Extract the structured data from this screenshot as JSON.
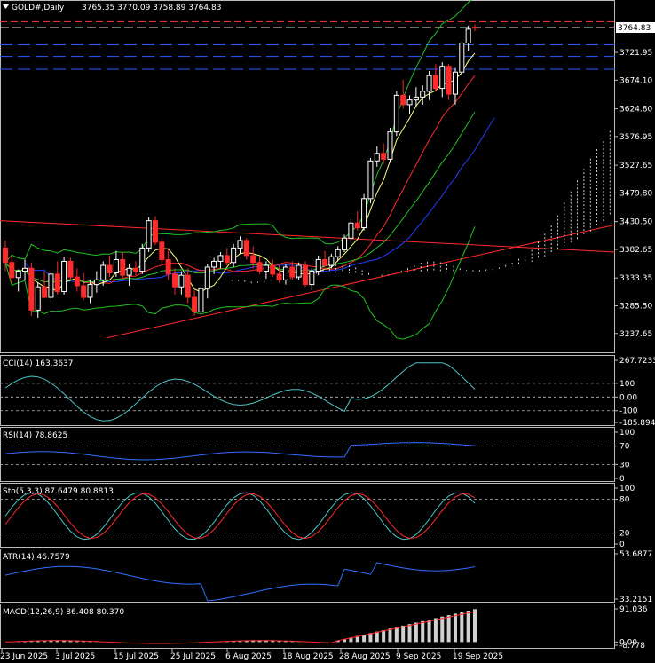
{
  "symbol_line": {
    "symbol": "GOLD#,Daily",
    "ohlc": "3765.35 3770.09 3758.89 3764.83"
  },
  "current_price": "3764.83",
  "colors": {
    "background": "#000000",
    "bull_candle": "#ffffff",
    "bear_candle": "#ff2a2a",
    "h_line_red": "#ff3b3b",
    "h_line_blue": "#2a5cff",
    "bollinger": "#22c022",
    "ma_fast": "#ffff80",
    "ma_mid": "#ff2a2a",
    "ma_slow": "#2040ff",
    "trend_red": "#ff2a2a",
    "ichimoku": "#ffffff",
    "cci": "#4fc3c3",
    "rsi": "#2f6fff",
    "stoch_main": "#4fc3c3",
    "stoch_signal": "#ff2a2a",
    "atr": "#2f6fff",
    "macd_hist": "#d0d0d0",
    "macd_signal": "#ff2a2a"
  },
  "chart_data": {
    "type": "candlestick",
    "price_axis": {
      "ticks": [
        "3764.83",
        "3721.95",
        "3674.10",
        "3624.80",
        "3576.95",
        "3527.65",
        "3479.80",
        "3430.50",
        "3382.65",
        "3333.35",
        "3285.50",
        "3237.65"
      ],
      "range": [
        3222,
        3800
      ]
    },
    "date_axis": [
      "23 Jun 2025",
      "3 Jul 2025",
      "15 Jul 2025",
      "25 Jul 2025",
      "6 Aug 2025",
      "18 Aug 2025",
      "28 Aug 2025",
      "9 Sep 2025",
      "19 Sep 2025"
    ],
    "candles": [
      {
        "o": 3385,
        "h": 3398,
        "l": 3345,
        "c": 3360
      },
      {
        "o": 3360,
        "h": 3372,
        "l": 3325,
        "c": 3334
      },
      {
        "o": 3334,
        "h": 3348,
        "l": 3310,
        "c": 3345
      },
      {
        "o": 3345,
        "h": 3365,
        "l": 3330,
        "c": 3350
      },
      {
        "o": 3350,
        "h": 3360,
        "l": 3268,
        "c": 3278
      },
      {
        "o": 3278,
        "h": 3325,
        "l": 3265,
        "c": 3318
      },
      {
        "o": 3318,
        "h": 3345,
        "l": 3298,
        "c": 3300
      },
      {
        "o": 3300,
        "h": 3345,
        "l": 3292,
        "c": 3340
      },
      {
        "o": 3340,
        "h": 3362,
        "l": 3305,
        "c": 3310
      },
      {
        "o": 3310,
        "h": 3370,
        "l": 3305,
        "c": 3362
      },
      {
        "o": 3362,
        "h": 3368,
        "l": 3330,
        "c": 3335
      },
      {
        "o": 3335,
        "h": 3350,
        "l": 3310,
        "c": 3320
      },
      {
        "o": 3320,
        "h": 3342,
        "l": 3295,
        "c": 3300
      },
      {
        "o": 3300,
        "h": 3330,
        "l": 3290,
        "c": 3322
      },
      {
        "o": 3322,
        "h": 3345,
        "l": 3308,
        "c": 3330
      },
      {
        "o": 3330,
        "h": 3362,
        "l": 3320,
        "c": 3355
      },
      {
        "o": 3355,
        "h": 3372,
        "l": 3335,
        "c": 3342
      },
      {
        "o": 3342,
        "h": 3380,
        "l": 3335,
        "c": 3365
      },
      {
        "o": 3365,
        "h": 3378,
        "l": 3332,
        "c": 3338
      },
      {
        "o": 3338,
        "h": 3358,
        "l": 3320,
        "c": 3350
      },
      {
        "o": 3350,
        "h": 3362,
        "l": 3338,
        "c": 3345
      },
      {
        "o": 3345,
        "h": 3392,
        "l": 3340,
        "c": 3385
      },
      {
        "o": 3385,
        "h": 3438,
        "l": 3378,
        "c": 3432
      },
      {
        "o": 3432,
        "h": 3440,
        "l": 3390,
        "c": 3395
      },
      {
        "o": 3395,
        "h": 3402,
        "l": 3355,
        "c": 3365
      },
      {
        "o": 3365,
        "h": 3385,
        "l": 3330,
        "c": 3340
      },
      {
        "o": 3340,
        "h": 3350,
        "l": 3305,
        "c": 3318
      },
      {
        "o": 3318,
        "h": 3345,
        "l": 3305,
        "c": 3338
      },
      {
        "o": 3338,
        "h": 3350,
        "l": 3290,
        "c": 3300
      },
      {
        "o": 3300,
        "h": 3312,
        "l": 3268,
        "c": 3275
      },
      {
        "o": 3275,
        "h": 3318,
        "l": 3270,
        "c": 3315
      },
      {
        "o": 3315,
        "h": 3358,
        "l": 3298,
        "c": 3352
      },
      {
        "o": 3352,
        "h": 3368,
        "l": 3340,
        "c": 3362
      },
      {
        "o": 3362,
        "h": 3378,
        "l": 3350,
        "c": 3372
      },
      {
        "o": 3372,
        "h": 3385,
        "l": 3355,
        "c": 3360
      },
      {
        "o": 3360,
        "h": 3392,
        "l": 3352,
        "c": 3385
      },
      {
        "o": 3385,
        "h": 3405,
        "l": 3375,
        "c": 3398
      },
      {
        "o": 3398,
        "h": 3402,
        "l": 3365,
        "c": 3372
      },
      {
        "o": 3372,
        "h": 3388,
        "l": 3350,
        "c": 3360
      },
      {
        "o": 3360,
        "h": 3370,
        "l": 3340,
        "c": 3345
      },
      {
        "o": 3345,
        "h": 3362,
        "l": 3332,
        "c": 3355
      },
      {
        "o": 3355,
        "h": 3365,
        "l": 3335,
        "c": 3340
      },
      {
        "o": 3340,
        "h": 3356,
        "l": 3325,
        "c": 3330
      },
      {
        "o": 3330,
        "h": 3358,
        "l": 3322,
        "c": 3352
      },
      {
        "o": 3352,
        "h": 3362,
        "l": 3330,
        "c": 3335
      },
      {
        "o": 3335,
        "h": 3360,
        "l": 3330,
        "c": 3355
      },
      {
        "o": 3355,
        "h": 3362,
        "l": 3318,
        "c": 3322
      },
      {
        "o": 3322,
        "h": 3350,
        "l": 3312,
        "c": 3345
      },
      {
        "o": 3345,
        "h": 3372,
        "l": 3338,
        "c": 3365
      },
      {
        "o": 3365,
        "h": 3380,
        "l": 3348,
        "c": 3355
      },
      {
        "o": 3355,
        "h": 3375,
        "l": 3350,
        "c": 3370
      },
      {
        "o": 3370,
        "h": 3388,
        "l": 3362,
        "c": 3382
      },
      {
        "o": 3382,
        "h": 3408,
        "l": 3378,
        "c": 3402
      },
      {
        "o": 3402,
        "h": 3435,
        "l": 3395,
        "c": 3428
      },
      {
        "o": 3428,
        "h": 3448,
        "l": 3415,
        "c": 3420
      },
      {
        "o": 3420,
        "h": 3478,
        "l": 3415,
        "c": 3470
      },
      {
        "o": 3470,
        "h": 3540,
        "l": 3462,
        "c": 3535
      },
      {
        "o": 3535,
        "h": 3560,
        "l": 3525,
        "c": 3548
      },
      {
        "o": 3548,
        "h": 3565,
        "l": 3530,
        "c": 3538
      },
      {
        "o": 3538,
        "h": 3592,
        "l": 3532,
        "c": 3585
      },
      {
        "o": 3585,
        "h": 3655,
        "l": 3578,
        "c": 3648
      },
      {
        "o": 3648,
        "h": 3675,
        "l": 3625,
        "c": 3632
      },
      {
        "o": 3632,
        "h": 3648,
        "l": 3615,
        "c": 3640
      },
      {
        "o": 3640,
        "h": 3662,
        "l": 3628,
        "c": 3645
      },
      {
        "o": 3645,
        "h": 3665,
        "l": 3632,
        "c": 3655
      },
      {
        "o": 3655,
        "h": 3690,
        "l": 3640,
        "c": 3682
      },
      {
        "o": 3682,
        "h": 3702,
        "l": 3655,
        "c": 3660
      },
      {
        "o": 3660,
        "h": 3705,
        "l": 3645,
        "c": 3698
      },
      {
        "o": 3698,
        "h": 3702,
        "l": 3640,
        "c": 3650
      },
      {
        "o": 3650,
        "h": 3695,
        "l": 3632,
        "c": 3688
      },
      {
        "o": 3688,
        "h": 3740,
        "l": 3682,
        "c": 3738
      },
      {
        "o": 3738,
        "h": 3768,
        "l": 3725,
        "c": 3762
      },
      {
        "o": 3765.35,
        "h": 3770.09,
        "l": 3758.89,
        "c": 3764.83
      }
    ],
    "indicators": {
      "cci": {
        "label": "CCI(14) 163.3637",
        "ticks": [
          "267.7233",
          "100",
          "0.00",
          "-100",
          "-185.8945"
        ],
        "range": [
          -185.8945,
          267.7233
        ],
        "levels": [
          100,
          0,
          -100
        ]
      },
      "rsi": {
        "label": "RSI(14) 78.8625",
        "ticks": [
          "100",
          "70",
          "30",
          "0"
        ],
        "range": [
          0,
          100
        ],
        "levels": [
          70,
          30
        ]
      },
      "stoch": {
        "label": "Sto(5,3,3) 87.6479 80.8813",
        "ticks": [
          "100",
          "80",
          "20",
          "0"
        ],
        "range": [
          0,
          100
        ],
        "levels": [
          80,
          20
        ]
      },
      "atr": {
        "label": "ATR(14) 46.7579",
        "ticks": [
          "53.6877",
          "33.2151"
        ],
        "range": [
          33.2151,
          53.6877
        ]
      },
      "macd": {
        "label": "MACD(12,26,9) 86.408 80.370",
        "ticks": [
          "91.036",
          "0.00",
          "-8.778"
        ],
        "range": [
          -8.778,
          91.036
        ]
      }
    }
  }
}
